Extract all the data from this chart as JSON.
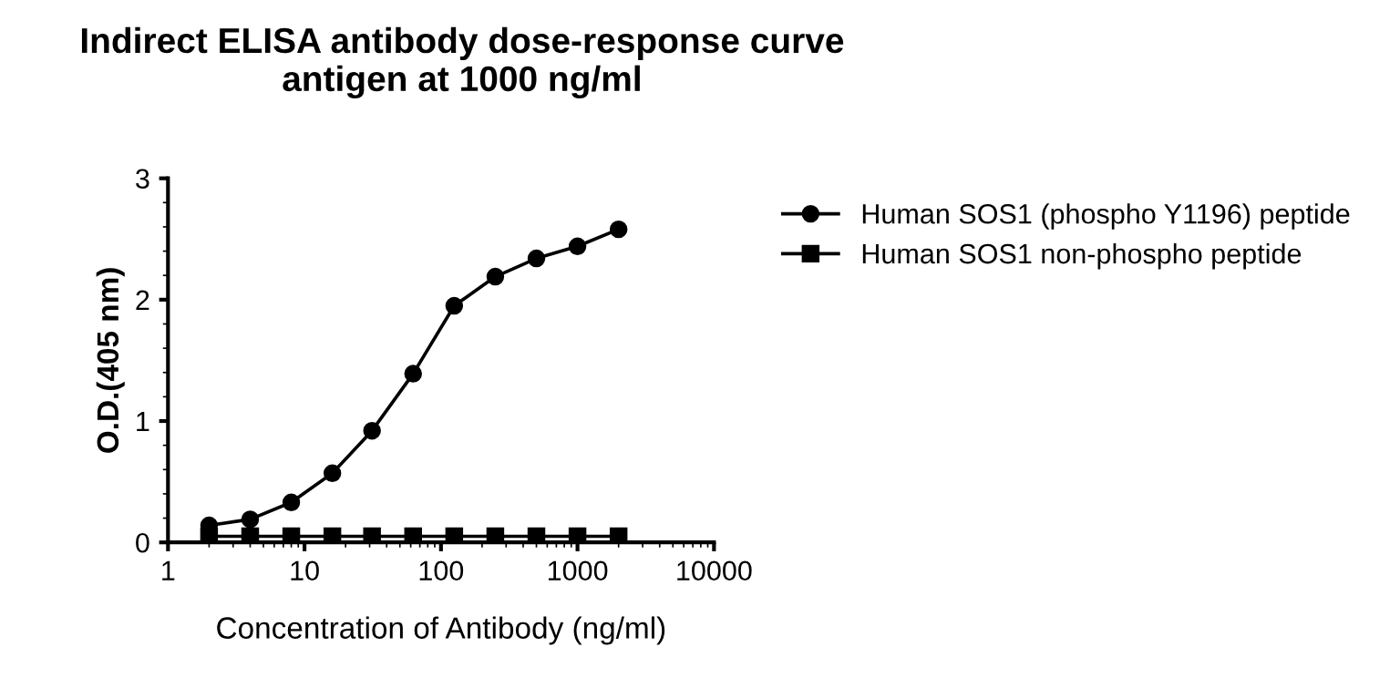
{
  "chart_data": {
    "type": "line",
    "title": "Indirect ELISA antibody dose-response curve\nantigen at 1000 ng/ml",
    "xlabel": "Concentration of Antibody (ng/ml)",
    "ylabel": "O.D.(405 nm)",
    "x": [
      2,
      4,
      8,
      16,
      31.25,
      62.5,
      125,
      250,
      500,
      1000,
      2000
    ],
    "series": [
      {
        "name": "Human SOS1 (phospho Y1196) peptide",
        "color": "#000000",
        "marker": "circle",
        "values": [
          0.14,
          0.19,
          0.33,
          0.57,
          0.92,
          1.39,
          1.95,
          2.19,
          2.34,
          2.44,
          2.58
        ]
      },
      {
        "name": "Human SOS1 non-phospho peptide",
        "color": "#000000",
        "marker": "square",
        "values": [
          0.05,
          0.05,
          0.05,
          0.05,
          0.05,
          0.05,
          0.05,
          0.05,
          0.05,
          0.05,
          0.05
        ]
      }
    ],
    "log": "x",
    "xlim": [
      1,
      10000
    ],
    "xticks": [
      1,
      10,
      100,
      1000,
      10000
    ],
    "ylim": [
      0,
      3
    ],
    "yticks": [
      0,
      1,
      2,
      3
    ],
    "grid": false,
    "legend": "right",
    "line_style": "solid"
  }
}
